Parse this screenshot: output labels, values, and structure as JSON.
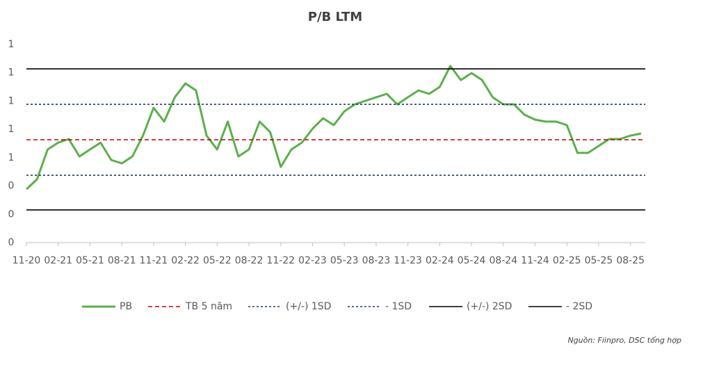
{
  "chart_data": {
    "type": "line",
    "title": "P/B LTM",
    "categories": [
      "11-20",
      null,
      null,
      "02-21",
      null,
      null,
      "05-21",
      null,
      null,
      "08-21",
      null,
      null,
      "11-21",
      null,
      null,
      "02-22",
      null,
      null,
      "05-22",
      null,
      null,
      "08-22",
      null,
      null,
      "11-22",
      null,
      null,
      "02-23",
      null,
      null,
      "05-23",
      null,
      null,
      "08-23",
      null,
      null,
      "11-23",
      null,
      null,
      "02-24",
      null,
      null,
      "05-24",
      null,
      null,
      "08-24",
      null,
      null,
      "11-24",
      null,
      null,
      "02-25",
      null,
      null,
      "05-25",
      null,
      null,
      "08-25",
      null
    ],
    "series": [
      {
        "name": "PB",
        "color": "#5aaf4a",
        "values": [
          0.378,
          0.447,
          0.658,
          0.707,
          0.732,
          0.609,
          0.658,
          0.707,
          0.584,
          0.56,
          0.609,
          0.756,
          0.953,
          0.855,
          1.027,
          1.125,
          1.076,
          0.756,
          0.658,
          0.855,
          0.609,
          0.658,
          0.855,
          0.781,
          0.535,
          0.658,
          0.707,
          0.805,
          0.879,
          0.83,
          0.928,
          0.977,
          1.002,
          1.027,
          1.051,
          0.977,
          1.027,
          1.076,
          1.051,
          1.1,
          1.248,
          1.149,
          1.198,
          1.149,
          1.027,
          0.977,
          0.977,
          0.904,
          0.869,
          0.855,
          0.855,
          0.83,
          0.634,
          0.634,
          0.683,
          0.732,
          0.732,
          0.756,
          0.771
        ]
      },
      {
        "name": "TB 5 năm",
        "color": "#c00000",
        "dash": "6 4",
        "value": 0.727
      },
      {
        "name": "(+/-) 1SD",
        "color": "#1f3864",
        "dash": "3 3",
        "value": 0.977
      },
      {
        "name": "- 1SD",
        "color": "#1f3864",
        "dash": "3 3",
        "value": 0.476
      },
      {
        "name": "(+/-) 2SD",
        "color": "#000000",
        "dash": "none",
        "value": 1.228
      },
      {
        "name": "- 2SD",
        "color": "#000000",
        "dash": "none",
        "value": 0.231
      }
    ],
    "ylim": [
      0,
      1.4
    ],
    "yticks": [
      0,
      {
        "value": 0.2,
        "label": "0"
      },
      {
        "value": 0.4,
        "label": "0"
      },
      {
        "value": 0.6,
        "label": "1"
      },
      {
        "value": 0.8,
        "label": "1"
      },
      {
        "value": 1.0,
        "label": "1"
      },
      {
        "value": 1.2,
        "label": "1"
      },
      {
        "value": 1.4,
        "label": "1"
      }
    ],
    "grid": false,
    "legend": "bottom",
    "source": "Nguồn: Fiinpro, DSC tổng hợp"
  }
}
